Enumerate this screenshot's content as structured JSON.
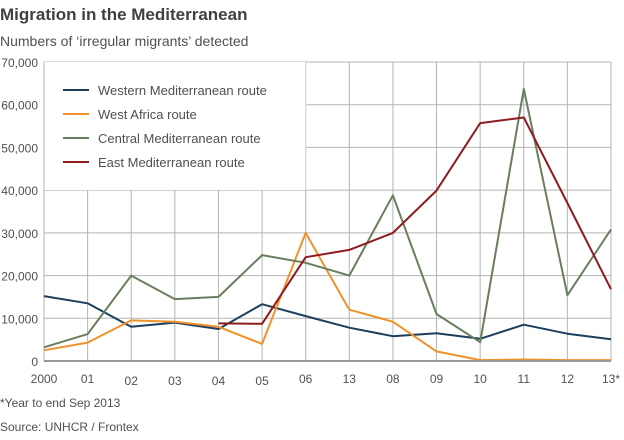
{
  "chart_data": {
    "type": "line",
    "title": "Migration in the Mediterranean",
    "subtitle": "Numbers of ‘irregular migrants’ detected",
    "categories": [
      "2000",
      "01",
      "02",
      "03",
      "04",
      "05",
      "06",
      "13",
      "08",
      "09",
      "10",
      "11",
      "12",
      "13*"
    ],
    "ylim": [
      0,
      70000
    ],
    "yticks": [
      0,
      10000,
      20000,
      30000,
      40000,
      50000,
      60000,
      70000
    ],
    "ytick_labels": [
      "0",
      "10,000",
      "20,000",
      "30,000",
      "40,000",
      "50,000",
      "60,000",
      "70,000"
    ],
    "grid": true,
    "legend_position": "top-left",
    "series": [
      {
        "name": "Western Mediterranean route",
        "color": "#1d3f5e",
        "values": [
          15200,
          13500,
          8000,
          9000,
          7500,
          13300,
          10500,
          7800,
          5800,
          6500,
          5200,
          8500,
          6400,
          5100
        ]
      },
      {
        "name": "West Africa route",
        "color": "#f0922b",
        "values": [
          2500,
          4300,
          9500,
          9200,
          8000,
          4000,
          30000,
          12000,
          9200,
          2250,
          200,
          350,
          200,
          200
        ]
      },
      {
        "name": "Central Mediterranean route",
        "color": "#687f5f",
        "values": [
          3200,
          6300,
          20000,
          14500,
          15000,
          24800,
          23000,
          20000,
          38800,
          11000,
          4400,
          63700,
          15400,
          30800
        ]
      },
      {
        "name": "East Mediterranean route",
        "color": "#8e1b1f",
        "values": [
          null,
          null,
          null,
          null,
          8800,
          8700,
          24300,
          26000,
          30000,
          39900,
          55700,
          57000,
          37000,
          16800
        ]
      }
    ]
  },
  "footnote": "*Year to end Sep 2013",
  "source": "Source: UNHCR / Frontex"
}
